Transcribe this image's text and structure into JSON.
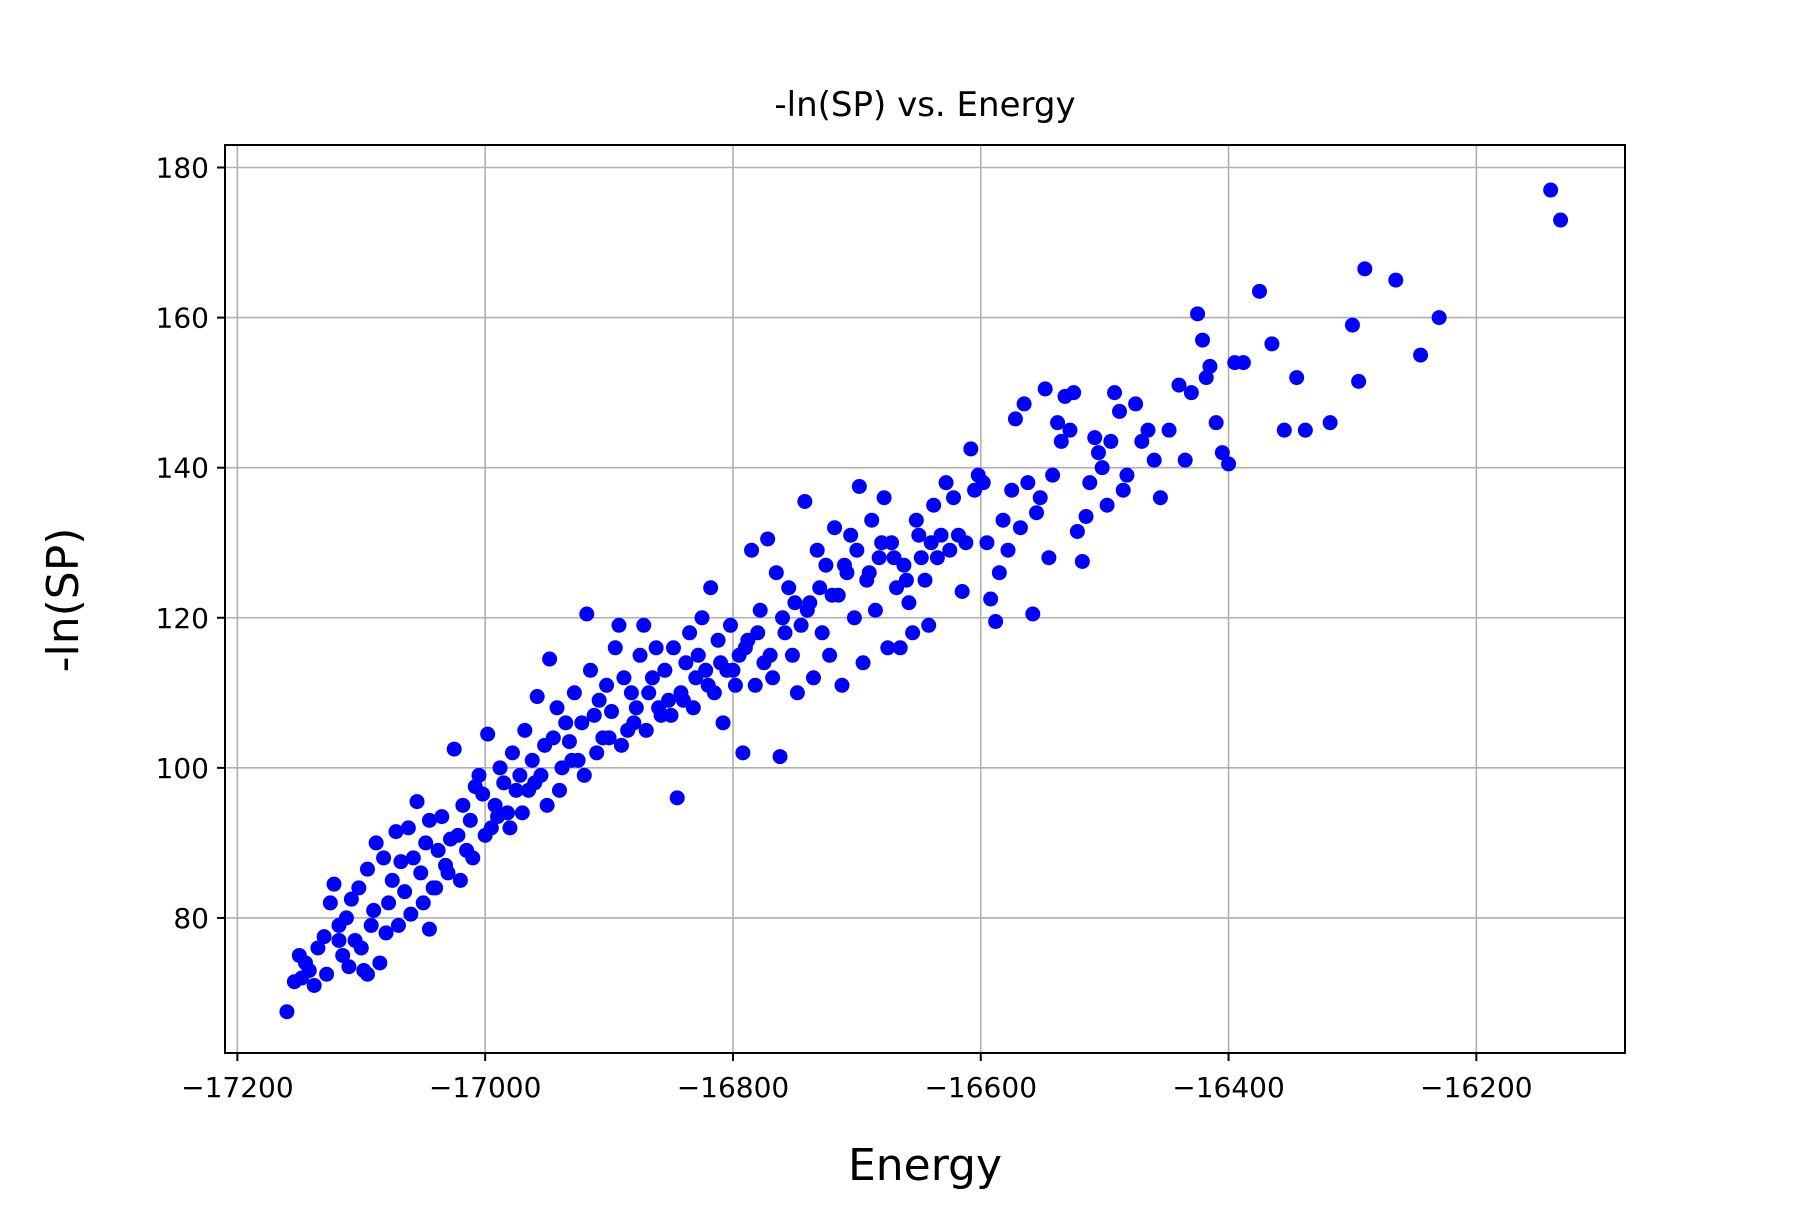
{
  "chart_data": {
    "type": "scatter",
    "title": "-ln(SP) vs. Energy",
    "xlabel": "Energy",
    "ylabel": "-ln(SP)",
    "xlim": [
      -17210,
      -16080
    ],
    "ylim": [
      62,
      183
    ],
    "xticks": [
      -17200,
      -17000,
      -16800,
      -16600,
      -16400,
      -16200
    ],
    "xtick_labels": [
      "−17200",
      "−17000",
      "−16800",
      "−16600",
      "−16400",
      "−16200"
    ],
    "yticks": [
      80,
      100,
      120,
      140,
      160,
      180
    ],
    "ytick_labels": [
      "80",
      "100",
      "120",
      "140",
      "160",
      "180"
    ],
    "grid": true,
    "marker_color": "#0000ff",
    "series": [
      {
        "points": [
          [
            -17160,
            67.5
          ],
          [
            -17154,
            71.5
          ],
          [
            -17148,
            72
          ],
          [
            -17145,
            74
          ],
          [
            -17138,
            71
          ],
          [
            -17135,
            76
          ],
          [
            -17130,
            77.5
          ],
          [
            -17125,
            82
          ],
          [
            -17122,
            84.5
          ],
          [
            -17118,
            79
          ],
          [
            -17115,
            75
          ],
          [
            -17112,
            80
          ],
          [
            -17108,
            82.5
          ],
          [
            -17105,
            77
          ],
          [
            -17102,
            84
          ],
          [
            -17098,
            73
          ],
          [
            -17095,
            86.5
          ],
          [
            -17092,
            79
          ],
          [
            -17088,
            90
          ],
          [
            -17085,
            74
          ],
          [
            -17082,
            88
          ],
          [
            -17078,
            82
          ],
          [
            -17075,
            85
          ],
          [
            -17072,
            91.5
          ],
          [
            -17068,
            87.5
          ],
          [
            -17065,
            83.5
          ],
          [
            -17062,
            92
          ],
          [
            -17058,
            88
          ],
          [
            -17055,
            95.5
          ],
          [
            -17052,
            86
          ],
          [
            -17048,
            90
          ],
          [
            -17045,
            93
          ],
          [
            -17042,
            84
          ],
          [
            -17038,
            89
          ],
          [
            -17035,
            93.5
          ],
          [
            -17032,
            87
          ],
          [
            -17028,
            90.5
          ],
          [
            -17025,
            102.5
          ],
          [
            -17022,
            91
          ],
          [
            -17018,
            95
          ],
          [
            -17015,
            89
          ],
          [
            -17012,
            93
          ],
          [
            -17008,
            97.5
          ],
          [
            -17005,
            99
          ],
          [
            -17002,
            96.5
          ],
          [
            -16998,
            104.5
          ],
          [
            -16995,
            92
          ],
          [
            -16992,
            95
          ],
          [
            -16988,
            100
          ],
          [
            -16985,
            98
          ],
          [
            -16982,
            94
          ],
          [
            -16978,
            102
          ],
          [
            -16975,
            97
          ],
          [
            -16972,
            99
          ],
          [
            -16968,
            105
          ],
          [
            -16965,
            97
          ],
          [
            -16962,
            101
          ],
          [
            -16958,
            109.5
          ],
          [
            -16955,
            99
          ],
          [
            -16952,
            103
          ],
          [
            -16948,
            114.5
          ],
          [
            -16945,
            104
          ],
          [
            -16942,
            108
          ],
          [
            -16938,
            100
          ],
          [
            -16935,
            106
          ],
          [
            -16932,
            103.5
          ],
          [
            -16928,
            110
          ],
          [
            -16925,
            101
          ],
          [
            -16922,
            106
          ],
          [
            -16918,
            120.5
          ],
          [
            -16915,
            113
          ],
          [
            -16912,
            107
          ],
          [
            -16908,
            109
          ],
          [
            -16905,
            104
          ],
          [
            -16902,
            111
          ],
          [
            -16898,
            107.5
          ],
          [
            -16895,
            116
          ],
          [
            -16892,
            119
          ],
          [
            -16888,
            112
          ],
          [
            -16885,
            105
          ],
          [
            -16882,
            110
          ],
          [
            -16878,
            108
          ],
          [
            -16875,
            115
          ],
          [
            -16872,
            119
          ],
          [
            -16868,
            110
          ],
          [
            -16865,
            112
          ],
          [
            -16862,
            116
          ],
          [
            -16858,
            107
          ],
          [
            -16855,
            113
          ],
          [
            -16852,
            109
          ],
          [
            -16848,
            116
          ],
          [
            -16845,
            96
          ],
          [
            -16842,
            110
          ],
          [
            -16838,
            114
          ],
          [
            -16835,
            118
          ],
          [
            -16832,
            108
          ],
          [
            -16828,
            115
          ],
          [
            -16825,
            120
          ],
          [
            -16822,
            113
          ],
          [
            -16818,
            124
          ],
          [
            -16815,
            110
          ],
          [
            -16812,
            117
          ],
          [
            -16808,
            106
          ],
          [
            -16805,
            113
          ],
          [
            -16802,
            119
          ],
          [
            -16798,
            111
          ],
          [
            -16795,
            115
          ],
          [
            -16792,
            102
          ],
          [
            -16788,
            117
          ],
          [
            -16785,
            129
          ],
          [
            -16782,
            111
          ],
          [
            -16778,
            121
          ],
          [
            -16775,
            114
          ],
          [
            -16772,
            130.5
          ],
          [
            -16768,
            112
          ],
          [
            -16765,
            126
          ],
          [
            -16762,
            101.5
          ],
          [
            -16758,
            118
          ],
          [
            -16755,
            124
          ],
          [
            -16752,
            115
          ],
          [
            -16748,
            110
          ],
          [
            -16745,
            119
          ],
          [
            -16742,
            135.5
          ],
          [
            -16738,
            122
          ],
          [
            -16735,
            112
          ],
          [
            -16732,
            129
          ],
          [
            -16728,
            118
          ],
          [
            -16725,
            127
          ],
          [
            -16722,
            115
          ],
          [
            -16718,
            132
          ],
          [
            -16715,
            123
          ],
          [
            -16712,
            111
          ],
          [
            -16708,
            126
          ],
          [
            -16705,
            131
          ],
          [
            -16702,
            120
          ],
          [
            -16698,
            137.5
          ],
          [
            -16695,
            114
          ],
          [
            -16692,
            125
          ],
          [
            -16688,
            133
          ],
          [
            -16685,
            121
          ],
          [
            -16682,
            128
          ],
          [
            -16678,
            136
          ],
          [
            -16675,
            116
          ],
          [
            -16672,
            130
          ],
          [
            -16668,
            124
          ],
          [
            -16665,
            116
          ],
          [
            -16662,
            127
          ],
          [
            -16658,
            122
          ],
          [
            -16655,
            118
          ],
          [
            -16652,
            133
          ],
          [
            -16648,
            128
          ],
          [
            -16645,
            125
          ],
          [
            -16642,
            119
          ],
          [
            -16638,
            135
          ],
          [
            -16635,
            128
          ],
          [
            -16632,
            131
          ],
          [
            -16628,
            138
          ],
          [
            -16625,
            129
          ],
          [
            -16622,
            136
          ],
          [
            -16618,
            131
          ],
          [
            -16615,
            123.5
          ],
          [
            -16612,
            130
          ],
          [
            -16608,
            142.5
          ],
          [
            -16605,
            137
          ],
          [
            -16602,
            139
          ],
          [
            -16598,
            138
          ],
          [
            -16595,
            130
          ],
          [
            -16592,
            122.5
          ],
          [
            -16588,
            119.5
          ],
          [
            -16585,
            126
          ],
          [
            -16582,
            133
          ],
          [
            -16578,
            129
          ],
          [
            -16575,
            137
          ],
          [
            -16572,
            146.5
          ],
          [
            -16568,
            132
          ],
          [
            -16565,
            148.5
          ],
          [
            -16562,
            138
          ],
          [
            -16558,
            120.5
          ],
          [
            -16555,
            134
          ],
          [
            -16552,
            136
          ],
          [
            -16548,
            150.5
          ],
          [
            -16545,
            128
          ],
          [
            -16542,
            139
          ],
          [
            -16538,
            146
          ],
          [
            -16535,
            143.5
          ],
          [
            -16532,
            149.5
          ],
          [
            -16528,
            145
          ],
          [
            -16525,
            150
          ],
          [
            -16522,
            131.5
          ],
          [
            -16518,
            127.5
          ],
          [
            -16515,
            133.5
          ],
          [
            -16512,
            138
          ],
          [
            -16508,
            144
          ],
          [
            -16505,
            142
          ],
          [
            -16502,
            140
          ],
          [
            -16498,
            135
          ],
          [
            -16495,
            143.5
          ],
          [
            -16492,
            150
          ],
          [
            -16488,
            147.5
          ],
          [
            -16485,
            137
          ],
          [
            -16482,
            139
          ],
          [
            -16475,
            148.5
          ],
          [
            -16470,
            143.5
          ],
          [
            -16465,
            145
          ],
          [
            -16460,
            141
          ],
          [
            -16455,
            136
          ],
          [
            -16448,
            145
          ],
          [
            -16440,
            151
          ],
          [
            -16435,
            141
          ],
          [
            -16430,
            150
          ],
          [
            -16425,
            160.5
          ],
          [
            -16421,
            157
          ],
          [
            -16418,
            152
          ],
          [
            -16415,
            153.5
          ],
          [
            -16410,
            146
          ],
          [
            -16405,
            142
          ],
          [
            -16400,
            140.5
          ],
          [
            -16395,
            154
          ],
          [
            -16388,
            154
          ],
          [
            -16375,
            163.5
          ],
          [
            -16365,
            156.5
          ],
          [
            -16355,
            145
          ],
          [
            -16345,
            152
          ],
          [
            -16338,
            145
          ],
          [
            -16318,
            146
          ],
          [
            -16300,
            159
          ],
          [
            -16295,
            151.5
          ],
          [
            -16290,
            166.5
          ],
          [
            -16265,
            165
          ],
          [
            -16245,
            155
          ],
          [
            -16230,
            160
          ],
          [
            -16140,
            177
          ],
          [
            -16132,
            173
          ],
          [
            -17150,
            75
          ],
          [
            -17142,
            73
          ],
          [
            -17128,
            72.5
          ],
          [
            -17118,
            77
          ],
          [
            -17110,
            73.5
          ],
          [
            -17100,
            76
          ],
          [
            -17095,
            72.5
          ],
          [
            -17090,
            81
          ],
          [
            -17080,
            78
          ],
          [
            -17070,
            79
          ],
          [
            -17060,
            80.5
          ],
          [
            -17050,
            82
          ],
          [
            -17045,
            78.5
          ],
          [
            -17040,
            84
          ],
          [
            -17030,
            86
          ],
          [
            -17020,
            85
          ],
          [
            -17010,
            88
          ],
          [
            -17000,
            91
          ],
          [
            -16990,
            93.5
          ],
          [
            -16980,
            92
          ],
          [
            -16970,
            94
          ],
          [
            -16960,
            98
          ],
          [
            -16950,
            95
          ],
          [
            -16940,
            97
          ],
          [
            -16930,
            101
          ],
          [
            -16920,
            99
          ],
          [
            -16910,
            102
          ],
          [
            -16900,
            104
          ],
          [
            -16890,
            103
          ],
          [
            -16880,
            106
          ],
          [
            -16870,
            105
          ],
          [
            -16860,
            108
          ],
          [
            -16850,
            107
          ],
          [
            -16840,
            109
          ],
          [
            -16830,
            112
          ],
          [
            -16820,
            111
          ],
          [
            -16810,
            114
          ],
          [
            -16800,
            113
          ],
          [
            -16790,
            116
          ],
          [
            -16780,
            118
          ],
          [
            -16770,
            115
          ],
          [
            -16760,
            120
          ],
          [
            -16750,
            122
          ],
          [
            -16740,
            121
          ],
          [
            -16730,
            124
          ],
          [
            -16720,
            123
          ],
          [
            -16710,
            127
          ],
          [
            -16700,
            129
          ],
          [
            -16690,
            126
          ],
          [
            -16680,
            130
          ],
          [
            -16670,
            128
          ],
          [
            -16660,
            125
          ],
          [
            -16650,
            131
          ],
          [
            -16640,
            130
          ]
        ]
      }
    ]
  }
}
